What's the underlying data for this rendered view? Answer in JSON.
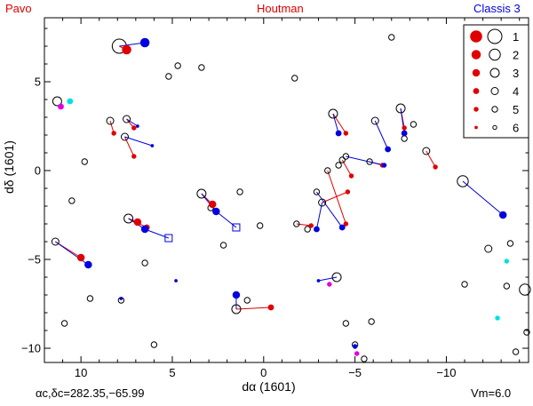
{
  "header": {
    "left": "Pavo",
    "center": "Houtman",
    "right": "Classis 3",
    "left_color": "#e00000",
    "center_color": "#e00000",
    "right_color": "#0000e0"
  },
  "footer": {
    "center_label": "αc,δc=282.35,−65.99",
    "right_label": "Vm=6.0"
  },
  "chart_data": {
    "type": "scatter",
    "xlabel": "dα  (1601)",
    "ylabel": "dδ  (1601)",
    "xlim": [
      12,
      -14.5
    ],
    "ylim": [
      -10.8,
      8.6
    ],
    "x_ticks": [
      10,
      5,
      0,
      -5,
      -10
    ],
    "y_ticks": [
      5,
      0,
      -5,
      -10
    ],
    "colors": {
      "catalog": "#000000",
      "red": "#e00000",
      "blue": "#0000e0",
      "magenta": "#e000e0",
      "cyan": "#00e0e0"
    },
    "legend": {
      "position": "top-right",
      "entries": [
        {
          "label": "1",
          "mag": 1
        },
        {
          "label": "2",
          "mag": 2
        },
        {
          "label": "3",
          "mag": 3
        },
        {
          "label": "4",
          "mag": 4
        },
        {
          "label": "5",
          "mag": 5
        },
        {
          "label": "6",
          "mag": 6
        }
      ]
    },
    "catalog_stars": [
      {
        "x": 7.9,
        "y": 7.0,
        "mag": 1
      },
      {
        "x": 4.7,
        "y": 5.9,
        "mag": 5
      },
      {
        "x": 5.2,
        "y": 5.3,
        "mag": 5
      },
      {
        "x": 3.4,
        "y": 5.8,
        "mag": 5
      },
      {
        "x": -1.7,
        "y": 5.2,
        "mag": 5
      },
      {
        "x": -7.0,
        "y": 7.5,
        "mag": 5
      },
      {
        "x": 11.3,
        "y": 3.9,
        "mag": 3
      },
      {
        "x": 8.4,
        "y": 2.8,
        "mag": 4
      },
      {
        "x": 7.5,
        "y": 2.9,
        "mag": 4
      },
      {
        "x": 7.6,
        "y": 1.9,
        "mag": 4
      },
      {
        "x": 9.8,
        "y": 0.5,
        "mag": 5
      },
      {
        "x": -3.8,
        "y": 3.2,
        "mag": 3
      },
      {
        "x": -6.1,
        "y": 2.8,
        "mag": 4
      },
      {
        "x": -7.5,
        "y": 3.5,
        "mag": 3
      },
      {
        "x": -8.2,
        "y": 2.6,
        "mag": 5
      },
      {
        "x": -7.7,
        "y": 1.8,
        "mag": 5
      },
      {
        "x": -8.9,
        "y": 1.1,
        "mag": 4
      },
      {
        "x": -4.5,
        "y": 0.8,
        "mag": 5
      },
      {
        "x": -4.3,
        "y": 0.6,
        "mag": 5
      },
      {
        "x": -5.8,
        "y": 0.5,
        "mag": 5
      },
      {
        "x": -4.1,
        "y": 0.3,
        "mag": 5
      },
      {
        "x": -3.5,
        "y": 0.0,
        "mag": 5
      },
      {
        "x": -10.9,
        "y": -0.6,
        "mag": 2
      },
      {
        "x": 1.3,
        "y": -1.2,
        "mag": 5
      },
      {
        "x": -2.9,
        "y": -1.2,
        "mag": 5
      },
      {
        "x": -3.2,
        "y": -1.8,
        "mag": 4
      },
      {
        "x": 3.4,
        "y": -1.3,
        "mag": 3
      },
      {
        "x": 2.9,
        "y": -2.1,
        "mag": 5
      },
      {
        "x": 7.4,
        "y": -2.7,
        "mag": 3
      },
      {
        "x": 11.4,
        "y": -4.0,
        "mag": 4
      },
      {
        "x": 10.5,
        "y": -1.7,
        "mag": 5
      },
      {
        "x": -1.8,
        "y": -3.0,
        "mag": 5
      },
      {
        "x": -2.4,
        "y": -3.3,
        "mag": 5
      },
      {
        "x": 0.2,
        "y": -3.1,
        "mag": 5
      },
      {
        "x": 6.5,
        "y": -5.2,
        "mag": 5
      },
      {
        "x": 2.2,
        "y": -4.2,
        "mag": 5
      },
      {
        "x": -12.3,
        "y": -4.4,
        "mag": 4
      },
      {
        "x": -13.5,
        "y": -4.1,
        "mag": 5
      },
      {
        "x": -11.0,
        "y": -6.4,
        "mag": 5
      },
      {
        "x": -13.3,
        "y": -6.5,
        "mag": 5
      },
      {
        "x": -14.3,
        "y": -6.7,
        "mag": 2
      },
      {
        "x": -4.0,
        "y": -6.0,
        "mag": 3
      },
      {
        "x": 7.8,
        "y": -7.3,
        "mag": 5
      },
      {
        "x": 9.5,
        "y": -7.2,
        "mag": 5
      },
      {
        "x": 1.5,
        "y": -7.8,
        "mag": 3
      },
      {
        "x": 0.9,
        "y": -7.3,
        "mag": 5
      },
      {
        "x": 10.9,
        "y": -8.6,
        "mag": 5
      },
      {
        "x": -4.5,
        "y": -8.6,
        "mag": 5
      },
      {
        "x": -5.9,
        "y": -8.5,
        "mag": 5
      },
      {
        "x": 6.0,
        "y": -9.8,
        "mag": 5
      },
      {
        "x": -5.0,
        "y": -9.8,
        "mag": 5
      },
      {
        "x": -5.5,
        "y": -10.6,
        "mag": 5
      },
      {
        "x": -14.4,
        "y": -9.1,
        "mag": 5
      },
      {
        "x": -13.8,
        "y": -10.2,
        "mag": 5
      }
    ],
    "red_stars": [
      {
        "x": 7.5,
        "y": 6.8,
        "mag": 2
      },
      {
        "x": 8.2,
        "y": 2.1,
        "mag": 5
      },
      {
        "x": 7.1,
        "y": 2.4,
        "mag": 5
      },
      {
        "x": 7.1,
        "y": 0.8,
        "mag": 5
      },
      {
        "x": 2.8,
        "y": -1.9,
        "mag": 3
      },
      {
        "x": 6.9,
        "y": -2.9,
        "mag": 3
      },
      {
        "x": 6.4,
        "y": -3.2,
        "mag": 4
      },
      {
        "x": 10.0,
        "y": -4.9,
        "mag": 3
      },
      {
        "x": -0.4,
        "y": -7.7,
        "mag": 4
      },
      {
        "x": -4.5,
        "y": 2.1,
        "mag": 5
      },
      {
        "x": -4.6,
        "y": -1.2,
        "mag": 5
      },
      {
        "x": -4.8,
        "y": -0.3,
        "mag": 5
      },
      {
        "x": -6.5,
        "y": 0.3,
        "mag": 5
      },
      {
        "x": -7.7,
        "y": 2.4,
        "mag": 5
      },
      {
        "x": -9.4,
        "y": 0.2,
        "mag": 5
      },
      {
        "x": -4.5,
        "y": -3.0,
        "mag": 5
      },
      {
        "x": -2.6,
        "y": -3.1,
        "mag": 5
      }
    ],
    "blue_stars": [
      {
        "x": 6.5,
        "y": 7.2,
        "mag": 2
      },
      {
        "x": 6.9,
        "y": 2.5,
        "mag": 6
      },
      {
        "x": 6.1,
        "y": 1.4,
        "mag": 6
      },
      {
        "x": 6.5,
        "y": -3.3,
        "mag": 3
      },
      {
        "x": 2.6,
        "y": -2.3,
        "mag": 3
      },
      {
        "x": 9.6,
        "y": -5.3,
        "mag": 3
      },
      {
        "x": 4.8,
        "y": -6.2,
        "mag": 6
      },
      {
        "x": 1.5,
        "y": -7.0,
        "mag": 3
      },
      {
        "x": 7.8,
        "y": -7.2,
        "mag": 6
      },
      {
        "x": -3.0,
        "y": -6.2,
        "mag": 6
      },
      {
        "x": -4.1,
        "y": 2.1,
        "mag": 4
      },
      {
        "x": -6.8,
        "y": 1.2,
        "mag": 4
      },
      {
        "x": -7.7,
        "y": 2.1,
        "mag": 4
      },
      {
        "x": -6.6,
        "y": 0.3,
        "mag": 5
      },
      {
        "x": -4.3,
        "y": -3.2,
        "mag": 4
      },
      {
        "x": -2.9,
        "y": -3.3,
        "mag": 4
      },
      {
        "x": -13.1,
        "y": -2.5,
        "mag": 3
      },
      {
        "x": -5.0,
        "y": -9.9,
        "mag": 5
      }
    ],
    "blue_squares": [
      {
        "x": 5.2,
        "y": -3.8
      },
      {
        "x": 1.5,
        "y": -3.2
      }
    ],
    "magenta_stars": [
      {
        "x": 11.1,
        "y": 3.6,
        "mag": 4
      },
      {
        "x": -3.6,
        "y": -6.4,
        "mag": 5
      },
      {
        "x": -5.1,
        "y": -10.3,
        "mag": 5
      }
    ],
    "cyan_stars": [
      {
        "x": 10.6,
        "y": 3.9,
        "mag": 4
      },
      {
        "x": -13.3,
        "y": -5.1,
        "mag": 5
      },
      {
        "x": -12.8,
        "y": -8.3,
        "mag": 5
      }
    ],
    "red_links": [
      [
        7.9,
        7.0,
        7.5,
        6.8
      ],
      [
        8.4,
        2.8,
        8.2,
        2.1
      ],
      [
        7.5,
        2.9,
        7.1,
        2.4
      ],
      [
        7.6,
        1.9,
        7.1,
        0.8
      ],
      [
        3.4,
        -1.3,
        2.8,
        -1.9
      ],
      [
        7.4,
        -2.7,
        6.9,
        -2.9
      ],
      [
        7.4,
        -2.7,
        6.4,
        -3.2
      ],
      [
        11.4,
        -4.0,
        10.0,
        -4.9
      ],
      [
        1.5,
        -7.8,
        -0.4,
        -7.7
      ],
      [
        -3.8,
        3.2,
        -4.5,
        2.1
      ],
      [
        -3.2,
        -1.8,
        -4.6,
        -1.2
      ],
      [
        -4.3,
        0.6,
        -4.8,
        -0.3
      ],
      [
        -5.8,
        0.5,
        -6.5,
        0.3
      ],
      [
        -7.5,
        3.5,
        -7.7,
        2.4
      ],
      [
        -8.9,
        1.1,
        -9.4,
        0.2
      ],
      [
        -3.5,
        0.0,
        -4.5,
        -3.0
      ],
      [
        -1.8,
        -3.0,
        -2.6,
        -3.1
      ]
    ],
    "blue_links": [
      [
        7.9,
        7.0,
        6.5,
        7.2
      ],
      [
        7.5,
        2.9,
        6.9,
        2.5
      ],
      [
        7.6,
        1.9,
        6.1,
        1.4
      ],
      [
        7.4,
        -2.7,
        6.5,
        -3.3
      ],
      [
        6.5,
        -3.3,
        5.2,
        -3.8
      ],
      [
        3.4,
        -1.3,
        2.6,
        -2.3
      ],
      [
        2.6,
        -2.3,
        1.5,
        -3.2
      ],
      [
        11.4,
        -4.0,
        9.6,
        -5.3
      ],
      [
        1.5,
        -7.8,
        1.5,
        -7.0
      ],
      [
        -3.8,
        3.2,
        -4.1,
        2.1
      ],
      [
        -6.1,
        2.8,
        -6.8,
        1.2
      ],
      [
        -7.5,
        3.5,
        -7.7,
        2.1
      ],
      [
        -4.5,
        0.8,
        -6.6,
        0.3
      ],
      [
        -2.9,
        -1.2,
        -4.3,
        -3.2
      ],
      [
        -3.2,
        -1.8,
        -2.9,
        -3.3
      ],
      [
        -10.9,
        -0.6,
        -13.1,
        -2.5
      ],
      [
        -4.0,
        -6.0,
        -3.0,
        -6.2
      ]
    ]
  }
}
